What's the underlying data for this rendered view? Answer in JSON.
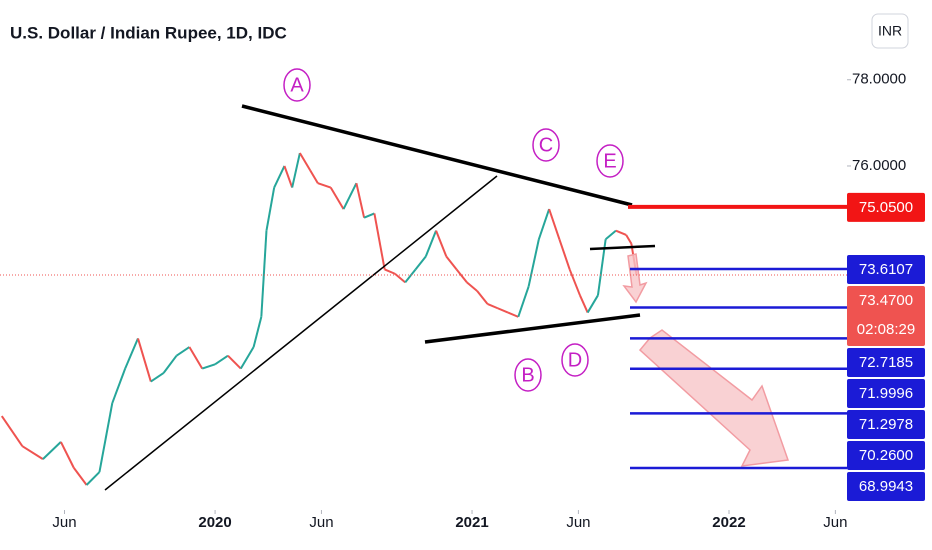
{
  "chart_data": {
    "type": "line",
    "title": "U.S. Dollar / Indian Rupee, 1D, IDC",
    "currency": "INR",
    "countdown": "02:08:29",
    "annotations": [
      "A",
      "B",
      "C",
      "D",
      "E"
    ],
    "x": [
      2019.17,
      2019.25,
      2019.33,
      2019.4,
      2019.45,
      2019.5,
      2019.55,
      2019.6,
      2019.65,
      2019.7,
      2019.75,
      2019.8,
      2019.85,
      2019.9,
      2019.95,
      2020.0,
      2020.05,
      2020.1,
      2020.15,
      2020.18,
      2020.2,
      2020.23,
      2020.27,
      2020.3,
      2020.33,
      2020.37,
      2020.4,
      2020.45,
      2020.5,
      2020.55,
      2020.58,
      2020.62,
      2020.66,
      2020.7,
      2020.74,
      2020.78,
      2020.82,
      2020.86,
      2020.9,
      2020.94,
      2020.98,
      2021.02,
      2021.06,
      2021.1,
      2021.14,
      2021.18,
      2021.22,
      2021.26,
      2021.3,
      2021.34,
      2021.38,
      2021.42,
      2021.45,
      2021.49,
      2021.52,
      2021.56,
      2021.6,
      2021.62,
      2021.64
    ],
    "values": [
      70.2,
      69.5,
      69.2,
      69.6,
      69.0,
      68.6,
      68.9,
      70.5,
      71.3,
      72.0,
      71.0,
      71.2,
      71.6,
      71.8,
      71.3,
      71.4,
      71.6,
      71.3,
      71.8,
      72.5,
      74.5,
      75.5,
      76.0,
      75.5,
      76.3,
      75.9,
      75.6,
      75.5,
      75.0,
      75.6,
      74.8,
      74.9,
      73.6,
      73.5,
      73.3,
      73.6,
      73.9,
      74.5,
      73.9,
      73.6,
      73.3,
      73.1,
      72.8,
      72.7,
      72.6,
      72.5,
      73.2,
      74.3,
      75.0,
      74.3,
      73.6,
      73.0,
      72.6,
      73.0,
      74.3,
      74.5,
      74.4,
      74.2,
      73.47
    ],
    "color_up": "#26a69a",
    "color_down": "#ef5350",
    "levels": {
      "values": [
        75.05,
        73.6107,
        73.47,
        72.7185,
        71.9996,
        71.2978,
        70.26,
        68.9943
      ],
      "value_labels": [
        "75.0500",
        "73.6107",
        "73.4700",
        "72.7185",
        "71.9996",
        "71.2978",
        "70.2600",
        "68.9943"
      ],
      "colors": [
        "#f21515",
        "#1b1bd6",
        "#ef5350",
        "#1b1bd6",
        "#1b1bd6",
        "#1b1bd6",
        "#1b1bd6",
        "#1b1bd6"
      ]
    },
    "xlim": [
      2019.163,
      2022.432
    ],
    "xticks": [
      {
        "value": 2019.414,
        "label": "Jun"
      },
      2020,
      {
        "value": 2020.414,
        "label": "Jun"
      },
      2021,
      {
        "value": 2021.414,
        "label": "Jun"
      },
      2022,
      {
        "value": 2022.414,
        "label": "Jun"
      }
    ],
    "ylim": [
      68.02,
      79.85
    ],
    "yticks": [
      {
        "value": 76,
        "label": "76.0000"
      },
      {
        "value": 78,
        "label": "78.0000"
      }
    ]
  }
}
